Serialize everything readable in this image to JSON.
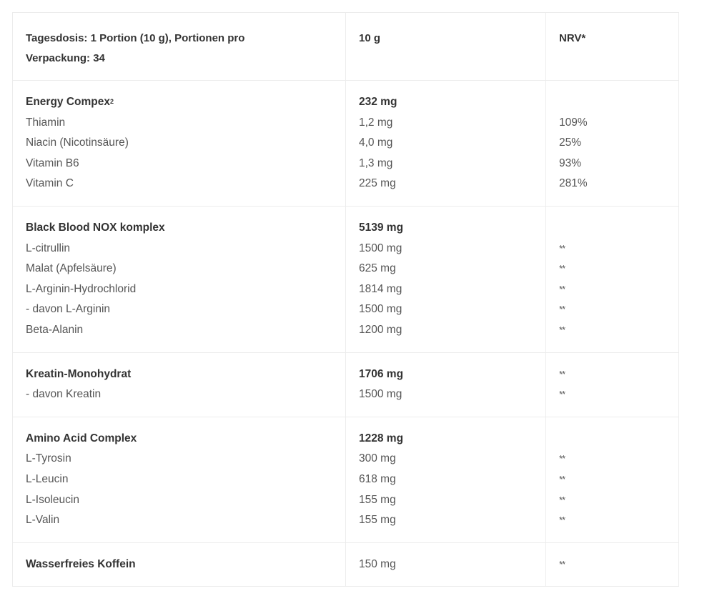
{
  "header": {
    "col1": "Tagesdosis: 1 Portion (10 g), Portionen pro Verpackung: 34",
    "col2": "10 g",
    "col3": "NRV*"
  },
  "groups": [
    {
      "name": "Energy Compex",
      "name_sup": "2",
      "total": "232 mg",
      "total_nrv": "",
      "items": [
        {
          "name": "Thiamin",
          "amount": "1,2 mg",
          "nrv": "109%"
        },
        {
          "name": "Niacin (Nicotinsäure)",
          "amount": "4,0 mg",
          "nrv": "25%"
        },
        {
          "name": "Vitamin B6",
          "amount": "1,3 mg",
          "nrv": "93%"
        },
        {
          "name": "Vitamin C",
          "amount": "225 mg",
          "nrv": "281%"
        }
      ]
    },
    {
      "name": "Black Blood NOX komplex",
      "total": "5139 mg",
      "total_nrv": "",
      "items": [
        {
          "name": "L-citrullin",
          "amount": "1500 mg",
          "nrv": "**"
        },
        {
          "name": "Malat (Apfelsäure)",
          "amount": "625 mg",
          "nrv": "**"
        },
        {
          "name": "L-Arginin-Hydrochlorid",
          "amount": "1814 mg",
          "nrv": "**"
        },
        {
          "name": "- davon L-Arginin",
          "amount": "1500 mg",
          "nrv": "**"
        },
        {
          "name": "Beta-Alanin",
          "amount": "1200 mg",
          "nrv": "**"
        }
      ]
    },
    {
      "name": "Kreatin-Monohydrat",
      "total": "1706 mg",
      "total_nrv": "**",
      "items": [
        {
          "name": "- davon Kreatin",
          "amount": "1500 mg",
          "nrv": "**"
        }
      ]
    },
    {
      "name": "Amino Acid Complex",
      "total": "1228 mg",
      "total_nrv": "",
      "items": [
        {
          "name": "L-Tyrosin",
          "amount": "300 mg",
          "nrv": "**"
        },
        {
          "name": "L-Leucin",
          "amount": "618 mg",
          "nrv": "**"
        },
        {
          "name": "L-Isoleucin",
          "amount": "155 mg",
          "nrv": "**"
        },
        {
          "name": "L-Valin",
          "amount": "155 mg",
          "nrv": "**"
        }
      ]
    },
    {
      "name": "Wasserfreies Koffein",
      "total": "150 mg",
      "total_nrv": "**",
      "total_bold": false,
      "items": []
    }
  ]
}
